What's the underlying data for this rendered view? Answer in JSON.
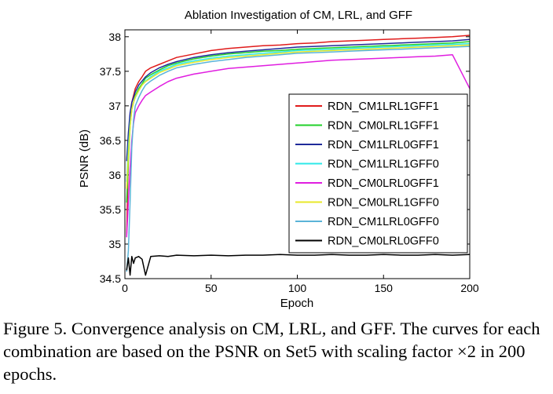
{
  "caption": {
    "text": "Figure 5. Convergence analysis on CM, LRL, and GFF. The curves for each combination are based on the PSNR on Set5 with scaling factor ×2 in 200 epochs."
  },
  "chart_data": {
    "type": "line",
    "title": "Ablation Investigation of CM, LRL, and GFF",
    "xlabel": "Epoch",
    "ylabel": "PSNR (dB)",
    "xlim": [
      0,
      200
    ],
    "ylim": [
      34.5,
      38.1
    ],
    "xticks": [
      0,
      50,
      100,
      150,
      200
    ],
    "yticks": [
      34.5,
      35,
      35.5,
      36,
      36.5,
      37,
      37.5,
      38
    ],
    "ytick_labels": [
      "34.5",
      "35",
      "35.5",
      "36",
      "36.5",
      "37",
      "37.5",
      "38"
    ],
    "legend_position": "right",
    "grid": false,
    "series": [
      {
        "name": "RDN_CM1LRL1GFF1",
        "color": "#e01b1b",
        "x": [
          1,
          2,
          3,
          4,
          5,
          6,
          8,
          10,
          12,
          15,
          20,
          25,
          30,
          40,
          50,
          60,
          70,
          80,
          90,
          100,
          110,
          120,
          130,
          140,
          150,
          160,
          170,
          180,
          190,
          200
        ],
        "y": [
          35.1,
          36.3,
          36.8,
          37.05,
          37.15,
          37.25,
          37.35,
          37.42,
          37.5,
          37.55,
          37.6,
          37.65,
          37.7,
          37.75,
          37.8,
          37.83,
          37.85,
          37.87,
          37.88,
          37.9,
          37.91,
          37.93,
          37.94,
          37.95,
          37.96,
          37.97,
          37.98,
          37.99,
          38.0,
          38.02
        ]
      },
      {
        "name": "RDN_CM0LRL1GFF1",
        "color": "#22d02a",
        "x": [
          1,
          2,
          3,
          4,
          5,
          6,
          8,
          10,
          12,
          15,
          20,
          25,
          30,
          40,
          50,
          60,
          70,
          80,
          90,
          100,
          110,
          120,
          130,
          140,
          150,
          160,
          170,
          180,
          190,
          200
        ],
        "y": [
          35.6,
          36.2,
          36.7,
          36.95,
          37.05,
          37.15,
          37.25,
          37.32,
          37.4,
          37.45,
          37.52,
          37.58,
          37.62,
          37.68,
          37.72,
          37.75,
          37.77,
          37.79,
          37.8,
          37.82,
          37.83,
          37.84,
          37.85,
          37.86,
          37.87,
          37.88,
          37.89,
          37.9,
          37.91,
          37.93
        ]
      },
      {
        "name": "RDN_CM1LRL0GFF1",
        "color": "#1f2a9a",
        "x": [
          1,
          2,
          3,
          4,
          5,
          6,
          8,
          10,
          12,
          15,
          20,
          25,
          30,
          40,
          50,
          60,
          70,
          80,
          90,
          100,
          110,
          120,
          130,
          140,
          150,
          160,
          170,
          180,
          190,
          200
        ],
        "y": [
          36.2,
          36.6,
          36.9,
          37.05,
          37.12,
          37.2,
          37.3,
          37.36,
          37.42,
          37.48,
          37.55,
          37.6,
          37.64,
          37.7,
          37.74,
          37.77,
          37.79,
          37.81,
          37.83,
          37.85,
          37.86,
          37.87,
          37.88,
          37.89,
          37.9,
          37.91,
          37.92,
          37.93,
          37.94,
          37.96
        ]
      },
      {
        "name": "RDN_CM1LRL1GFF0",
        "color": "#2de8e8",
        "x": [
          1,
          2,
          3,
          4,
          5,
          6,
          8,
          10,
          12,
          15,
          20,
          25,
          30,
          40,
          50,
          60,
          70,
          80,
          90,
          100,
          110,
          120,
          130,
          140,
          150,
          160,
          170,
          180,
          190,
          200
        ],
        "y": [
          35.9,
          36.4,
          36.75,
          36.95,
          37.05,
          37.12,
          37.22,
          37.3,
          37.36,
          37.42,
          37.5,
          37.55,
          37.6,
          37.65,
          37.69,
          37.72,
          37.74,
          37.76,
          37.78,
          37.8,
          37.81,
          37.82,
          37.83,
          37.84,
          37.85,
          37.86,
          37.87,
          37.88,
          37.89,
          37.9
        ]
      },
      {
        "name": "RDN_CM0LRL0GFF1",
        "color": "#e01ee0",
        "x": [
          1,
          2,
          3,
          4,
          5,
          6,
          8,
          10,
          12,
          15,
          20,
          25,
          30,
          40,
          50,
          60,
          70,
          80,
          90,
          100,
          110,
          120,
          130,
          140,
          150,
          160,
          170,
          180,
          190,
          200
        ],
        "y": [
          35.1,
          35.6,
          36.1,
          36.5,
          36.75,
          36.9,
          37.0,
          37.08,
          37.15,
          37.2,
          37.28,
          37.35,
          37.4,
          37.46,
          37.5,
          37.54,
          37.56,
          37.58,
          37.6,
          37.62,
          37.64,
          37.66,
          37.67,
          37.68,
          37.69,
          37.7,
          37.71,
          37.72,
          37.74,
          37.25
        ]
      },
      {
        "name": "RDN_CM0LRL1GFF0",
        "color": "#e8e82a",
        "x": [
          1,
          2,
          3,
          4,
          5,
          6,
          8,
          10,
          12,
          15,
          20,
          25,
          30,
          40,
          50,
          60,
          70,
          80,
          90,
          100,
          110,
          120,
          130,
          140,
          150,
          160,
          170,
          180,
          190,
          200
        ],
        "y": [
          35.8,
          36.3,
          36.7,
          36.95,
          37.05,
          37.13,
          37.22,
          37.3,
          37.35,
          37.4,
          37.48,
          37.53,
          37.58,
          37.63,
          37.67,
          37.7,
          37.72,
          37.74,
          37.76,
          37.78,
          37.79,
          37.8,
          37.81,
          37.82,
          37.83,
          37.84,
          37.85,
          37.86,
          37.87,
          37.88
        ]
      },
      {
        "name": "RDN_CM1LRL0GFF0",
        "color": "#5ab4d8",
        "x": [
          1,
          2,
          3,
          4,
          5,
          6,
          8,
          10,
          12,
          15,
          20,
          25,
          30,
          40,
          50,
          60,
          70,
          80,
          90,
          100,
          110,
          120,
          130,
          140,
          150,
          160,
          170,
          180,
          190,
          200
        ],
        "y": [
          34.6,
          34.9,
          35.6,
          36.4,
          36.8,
          37.0,
          37.12,
          37.22,
          37.3,
          37.36,
          37.44,
          37.5,
          37.55,
          37.6,
          37.64,
          37.67,
          37.7,
          37.72,
          37.74,
          37.76,
          37.77,
          37.78,
          37.79,
          37.8,
          37.81,
          37.82,
          37.83,
          37.84,
          37.85,
          37.86
        ]
      },
      {
        "name": "RDN_CM0LRL0GFF0",
        "color": "#000000",
        "x": [
          1,
          2,
          3,
          4,
          5,
          6,
          8,
          10,
          12,
          15,
          20,
          25,
          30,
          40,
          50,
          60,
          70,
          80,
          90,
          100,
          110,
          120,
          130,
          140,
          150,
          160,
          170,
          180,
          190,
          200
        ],
        "y": [
          34.62,
          34.8,
          34.55,
          34.82,
          34.72,
          34.8,
          34.82,
          34.78,
          34.55,
          34.82,
          34.83,
          34.82,
          34.84,
          34.83,
          34.84,
          34.83,
          34.84,
          34.84,
          34.85,
          34.84,
          34.84,
          34.85,
          34.84,
          34.84,
          34.85,
          34.84,
          34.84,
          34.85,
          34.84,
          34.85
        ]
      }
    ]
  }
}
